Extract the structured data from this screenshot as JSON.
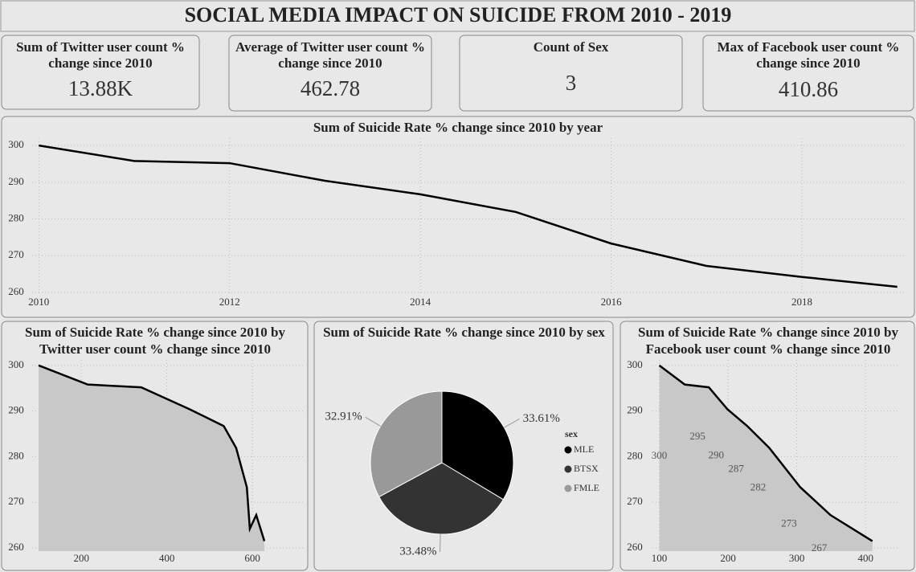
{
  "title": "SOCIAL MEDIA IMPACT ON SUICIDE FROM 2010 - 2019",
  "cards": [
    {
      "label": "Sum of Twitter user count % change since 2010",
      "value": "13.88K"
    },
    {
      "label": "Average of Twitter user count % change since 2010",
      "value": 462.78
    },
    {
      "label": "Count of Sex",
      "value": 3
    },
    {
      "label": "Max of Facebook user count % change since 2010",
      "value": 410.86
    }
  ],
  "chart_data": [
    {
      "type": "line",
      "title": "Sum of Suicide Rate % change since 2010 by year",
      "x": [
        2010,
        2011,
        2012,
        2013,
        2014,
        2015,
        2016,
        2017,
        2018,
        2019
      ],
      "values": [
        300,
        295.8,
        295.2,
        290.4,
        286.7,
        281.9,
        273.3,
        267.2,
        264.2,
        261.5
      ],
      "color": "#000000",
      "xlim": [
        2009.93,
        2019.07
      ],
      "xticks": [
        2010,
        2012,
        2014,
        2016,
        2018
      ],
      "ylim": [
        259.1,
        302
      ],
      "yticks": [
        260,
        270,
        280,
        290,
        300
      ],
      "grid": true
    },
    {
      "type": "area",
      "title": "Sum of Suicide Rate % change since 2010 by Twitter user count % change since 2010",
      "x": [
        100,
        215,
        340,
        453,
        533,
        562,
        587,
        594,
        609,
        628
      ],
      "values": [
        300,
        295.8,
        295.2,
        290.4,
        286.7,
        281.9,
        273.3,
        264.2,
        267.2,
        261.5
      ],
      "color": "#000000",
      "fill": "#c8c8c8",
      "xlim": [
        85,
        720
      ],
      "xticks": [
        200,
        400,
        600
      ],
      "ylim": [
        259.3,
        301.2
      ],
      "yticks": [
        260,
        270,
        280,
        290,
        300
      ],
      "grid": true
    },
    {
      "type": "pie",
      "title": "Sum of Suicide Rate % change since 2010 by sex",
      "legend_title": "sex",
      "categories": [
        "MLE",
        "BTSX",
        "FMLE"
      ],
      "values": [
        33.61,
        33.48,
        32.91
      ],
      "value_labels": [
        "33.61%",
        "33.48%",
        "32.91%"
      ],
      "colors": [
        "#000000",
        "#333333",
        "#999999"
      ]
    },
    {
      "type": "area",
      "title": "Sum of Suicide Rate % change since 2010 by Facebook user count % change since 2010",
      "x": [
        100,
        137,
        172,
        199,
        228,
        260,
        305,
        349,
        410
      ],
      "values": [
        300,
        295.8,
        295.2,
        290.4,
        286.7,
        281.9,
        273.3,
        267.2,
        261.5
      ],
      "value_labels": [
        "300",
        null,
        "295",
        "290",
        "287",
        "282",
        "273",
        "267",
        null
      ],
      "color": "#000000",
      "fill": "#c8c8c8",
      "xlim": [
        90,
        450
      ],
      "xticks": [
        100,
        200,
        300,
        400
      ],
      "ylim": [
        259.3,
        301.2
      ],
      "yticks": [
        260,
        270,
        280,
        290,
        300
      ],
      "grid": true
    }
  ]
}
